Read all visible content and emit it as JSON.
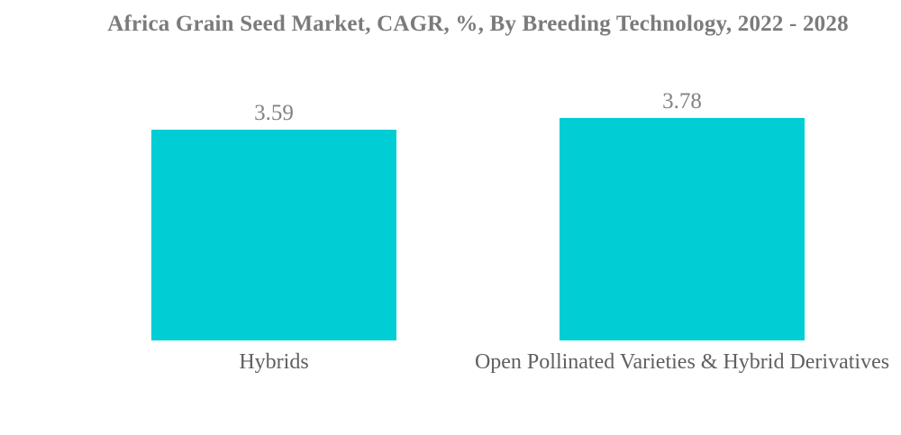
{
  "chart_data": {
    "type": "bar",
    "title": "Africa Grain Seed Market, CAGR, %, By Breeding Technology, 2022 - 2028",
    "categories": [
      "Hybrids",
      "Open Pollinated Varieties & Hybrid Derivatives"
    ],
    "values": [
      3.59,
      3.78
    ],
    "value_labels": [
      "3.59",
      "3.78"
    ],
    "xlabel": "",
    "ylabel": "",
    "ylim": [
      0,
      4.2
    ],
    "grid": false,
    "legend": false,
    "colors": {
      "bar": "#00CDD4",
      "title_text": "#7B7B7B",
      "value_text": "#828282",
      "category_text": "#606060",
      "background": "#FFFFFF"
    }
  }
}
